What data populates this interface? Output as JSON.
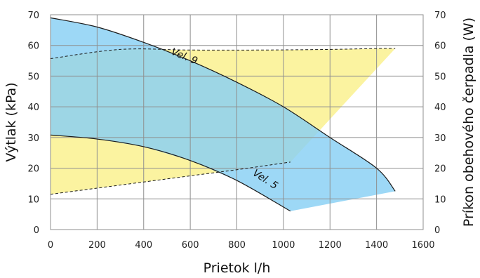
{
  "chart_data": {
    "type": "area",
    "xlabel": "Prietok l/h",
    "ylabel": "Výtlak (kPa)",
    "y2label": "Príkon obehového čerpadla  (W)",
    "xlim": [
      0,
      1600
    ],
    "ylim": [
      0,
      70
    ],
    "y2lim": [
      0,
      70
    ],
    "x_ticks": [
      "0",
      "200",
      "400",
      "600",
      "800",
      "1000",
      "1200",
      "1400",
      "1600"
    ],
    "y_ticks": [
      "0",
      "10",
      "20",
      "30",
      "40",
      "50",
      "60",
      "70"
    ],
    "y2_ticks": [
      "0",
      "10",
      "20",
      "30",
      "40",
      "50",
      "60",
      "70"
    ],
    "grid": true,
    "colors": {
      "pressure_area": "#87cff4",
      "power_area": "#fbf3a0",
      "overlap": "#9dd6d3",
      "curve": "#1a1a1a",
      "grid": "#8f8f8f"
    },
    "series": [
      {
        "name": "Vel. 9",
        "kind": "pressure",
        "x": [
          0,
          200,
          400,
          600,
          800,
          1000,
          1200,
          1400,
          1480
        ],
        "y": [
          69,
          66,
          61,
          55,
          48,
          40,
          30,
          20,
          12.5
        ]
      },
      {
        "name": "Vel. 5",
        "kind": "pressure",
        "x": [
          0,
          200,
          400,
          600,
          800,
          1030
        ],
        "y": [
          30.8,
          29.5,
          27,
          22.5,
          16,
          6
        ]
      },
      {
        "kind": "power",
        "x": [
          0,
          300,
          600,
          900,
          1200,
          1400,
          1480
        ],
        "y": [
          55.7,
          58.7,
          58.5,
          58.5,
          58.7,
          59,
          59
        ]
      },
      {
        "kind": "power",
        "x": [
          0,
          200,
          400,
          600,
          800,
          1030
        ],
        "y": [
          11.5,
          13.5,
          15.5,
          17.5,
          19.5,
          22
        ]
      }
    ]
  }
}
